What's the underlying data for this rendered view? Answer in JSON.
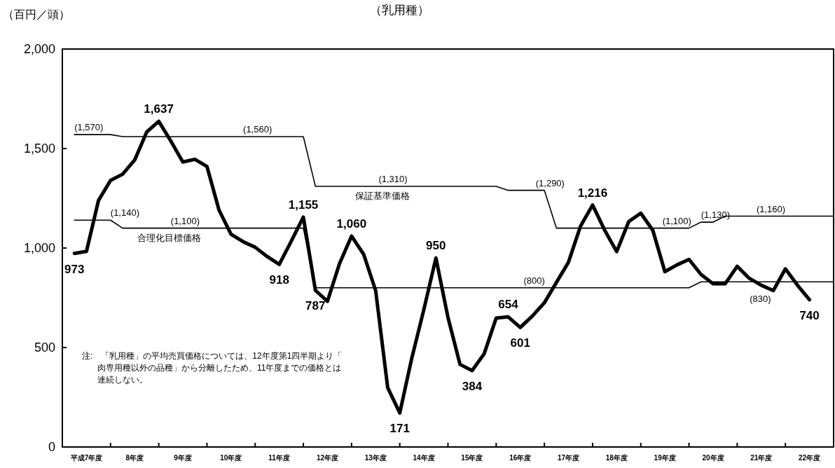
{
  "chart_data": {
    "type": "line",
    "title": "（乳用種）",
    "ylabel": "（百円／頭）",
    "xlim": [
      6.5,
      22.5
    ],
    "ylim": [
      0,
      2000
    ],
    "yticks": [
      0,
      500,
      {
        "value": 1000,
        "label": "1,000"
      },
      {
        "value": 1500,
        "label": "1,500"
      },
      {
        "value": 2000,
        "label": "2,000"
      }
    ],
    "xticks": [
      {
        "value": 7,
        "label": "平成7年度"
      },
      {
        "value": 7.5,
        "label": null
      },
      {
        "value": 8,
        "label": "8年度"
      },
      {
        "value": 8.5,
        "label": null
      },
      {
        "value": 9,
        "label": "9年度"
      },
      {
        "value": 9.5,
        "label": null
      },
      {
        "value": 10,
        "label": "10年度"
      },
      {
        "value": 10.5,
        "label": null
      },
      {
        "value": 11,
        "label": "11年度"
      },
      {
        "value": 11.5,
        "label": null
      },
      {
        "value": 12,
        "label": "12年度"
      },
      {
        "value": 12.5,
        "label": null
      },
      {
        "value": 13,
        "label": "13年度"
      },
      {
        "value": 13.5,
        "label": null
      },
      {
        "value": 14,
        "label": "14年度"
      },
      {
        "value": 14.5,
        "label": null
      },
      {
        "value": 15,
        "label": "15年度"
      },
      {
        "value": 15.5,
        "label": null
      },
      {
        "value": 16,
        "label": "16年度"
      },
      {
        "value": 16.5,
        "label": null
      },
      {
        "value": 17,
        "label": "17年度"
      },
      {
        "value": 17.5,
        "label": null
      },
      {
        "value": 18,
        "label": "18年度"
      },
      {
        "value": 18.5,
        "label": null
      },
      {
        "value": 19,
        "label": "19年度"
      },
      {
        "value": 19.5,
        "label": null
      },
      {
        "value": 20,
        "label": "20年度"
      },
      {
        "value": 20.5,
        "label": null
      },
      {
        "value": 21,
        "label": "21年度"
      },
      {
        "value": 21.5,
        "label": null
      },
      {
        "value": 22,
        "label": "22年度"
      }
    ],
    "series": [
      {
        "color": "#000000",
        "x": [
          6.75,
          7,
          7.25,
          7.5,
          7.75,
          8,
          8.25,
          8.5,
          8.75,
          9,
          9.25,
          9.5,
          9.75,
          10,
          10.25,
          10.5,
          10.75,
          11,
          11.25,
          11.5,
          11.75,
          12,
          12.25,
          12.5,
          12.75,
          13,
          13.25,
          13.5,
          13.75,
          14,
          14.25,
          14.5,
          14.75,
          15,
          15.25,
          15.5,
          15.75,
          16,
          16.25,
          16.5,
          16.75,
          17,
          17.25,
          17.5,
          17.75,
          18,
          18.25,
          18.5,
          18.75,
          19,
          19.25,
          19.5,
          19.75,
          20,
          20.25,
          20.5,
          20.75,
          21,
          21.25,
          21.5,
          21.75,
          22
        ],
        "values": [
          973,
          983,
          1239,
          1340,
          1371,
          1442,
          1583,
          1637,
          1538,
          1432,
          1446,
          1410,
          1191,
          1069,
          1032,
          1004,
          957,
          918,
          1035,
          1155,
          787,
          732,
          922,
          1060,
          969,
          786,
          298,
          171,
          447,
          691,
          950,
          651,
          415,
          384,
          468,
          648,
          654,
          601,
          658,
          725,
          827,
          929,
          1110,
          1216,
          1090,
          982,
          1133,
          1175,
          1089,
          881,
          915,
          943,
          867,
          820,
          820,
          908,
          848,
          813,
          786,
          895,
          813,
          740
        ],
        "value_labels": [
          "973",
          null,
          null,
          null,
          null,
          null,
          null,
          "1,637",
          null,
          null,
          null,
          null,
          null,
          null,
          null,
          null,
          null,
          "918",
          null,
          "1,155",
          "787",
          null,
          null,
          "1,060",
          null,
          null,
          null,
          "171",
          null,
          null,
          "950",
          null,
          null,
          "384",
          null,
          null,
          "654",
          "601",
          null,
          null,
          null,
          null,
          null,
          "1,216",
          null,
          null,
          null,
          null,
          null,
          null,
          null,
          null,
          null,
          null,
          null,
          null,
          null,
          null,
          null,
          null,
          null,
          "740"
        ]
      },
      {
        "color": "#000000",
        "x": [
          6.75,
          7.5,
          7.75,
          11.5,
          11.75,
          15.5,
          15.75,
          16.5,
          16.75,
          19.5,
          19.75,
          20,
          20.25,
          22.5
        ],
        "values": [
          1570,
          1570,
          1560,
          1560,
          1310,
          1310,
          1290,
          1290,
          1100,
          1100,
          1130,
          1130,
          1160,
          1160
        ]
      },
      {
        "color": "#000000",
        "x": [
          6.75,
          7.5,
          7.75,
          11.5,
          11.75,
          19.5,
          19.75,
          22.5
        ],
        "values": [
          1140,
          1140,
          1100,
          1100,
          800,
          800,
          830,
          830
        ]
      }
    ],
    "annotations": [
      {
        "text": "(1,570)",
        "x": 6.75,
        "y": 1570
      },
      {
        "text": "(1,560)",
        "x": 10.25,
        "y": 1560
      },
      {
        "text": "(1,310)",
        "x": 13.06,
        "y": 1310
      },
      {
        "text": "(1,290)",
        "x": 16.32,
        "y": 1290
      },
      {
        "text": "(1,130)",
        "x": 19.75,
        "y": 1130
      },
      {
        "text": "(1,160)",
        "x": 20.9,
        "y": 1160
      },
      {
        "text": "(1,100)",
        "x": 18.95,
        "y": 1100
      },
      {
        "text": "(1,140)",
        "x": 7.5,
        "y": 1140
      },
      {
        "text": "(1,100)",
        "x": 8.75,
        "y": 1100
      },
      {
        "text": "(800)",
        "x": 16.07,
        "y": 800
      },
      {
        "text": "(830)",
        "x": 20.76,
        "y": 830
      },
      {
        "text": "保証基準価格",
        "x": 12.57,
        "y": 1310
      },
      {
        "text": "合理化目標価格",
        "x": 8.05,
        "y": 1100
      },
      "注:　「乳用種」の平均売買価格については、12年度第1四半期より「肉専用種以外の品種」から分離したため、11年度までの価格とは連続しない。"
    ]
  }
}
